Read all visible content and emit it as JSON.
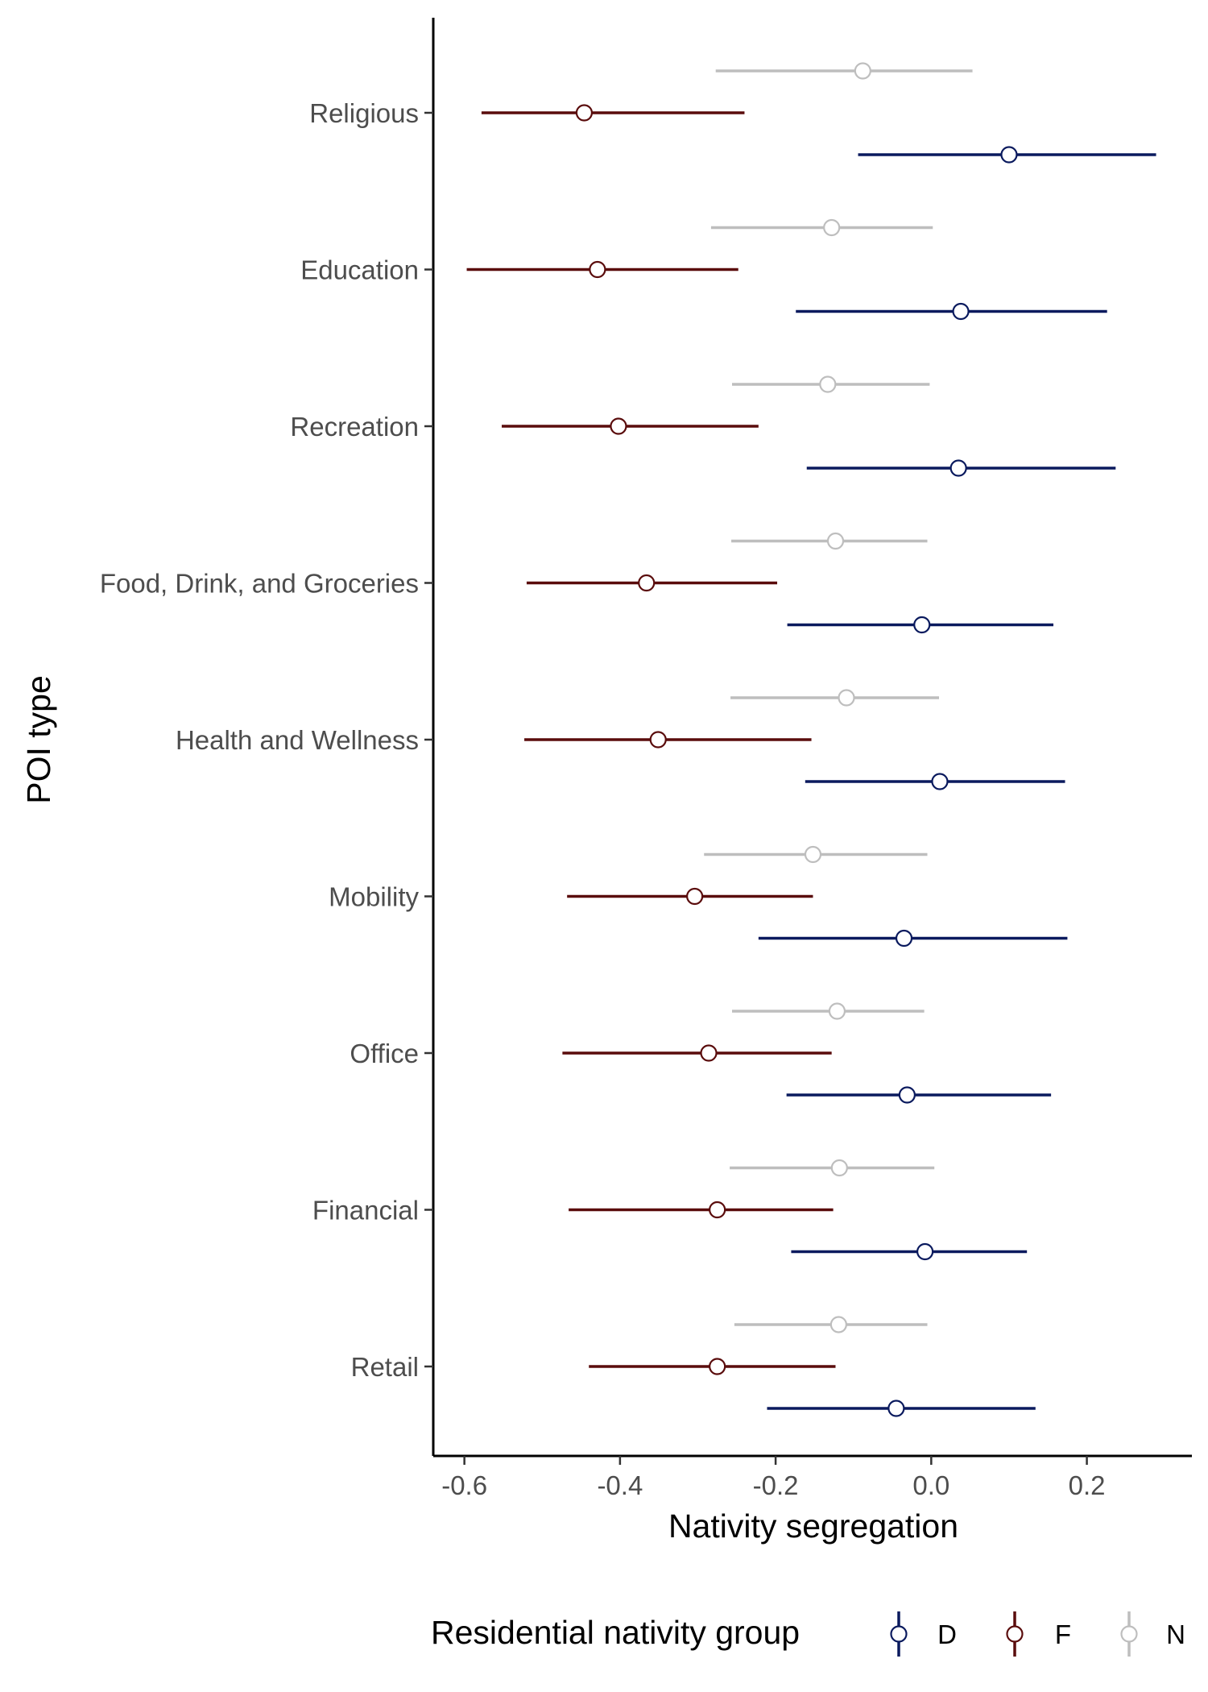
{
  "chart_data": {
    "type": "scatter",
    "subtype": "dot-and-whisker",
    "orientation": "horizontal",
    "xlabel": "Nativity segregation",
    "ylabel": "POI type",
    "xlim": [
      -0.64,
      0.335
    ],
    "x_ticks": [
      {
        "value": -0.6,
        "label": "-0.6"
      },
      {
        "value": -0.4,
        "label": "-0.4"
      },
      {
        "value": -0.2,
        "label": "-0.2"
      },
      {
        "value": 0.0,
        "label": "0.0"
      },
      {
        "value": 0.2,
        "label": "0.2"
      }
    ],
    "categories": [
      "Religious",
      "Education",
      "Recreation",
      "Food, Drink, and Groceries",
      "Health and Wellness",
      "Mobility",
      "Office",
      "Financial",
      "Retail"
    ],
    "legend": {
      "title": "Residential nativity group",
      "position": "bottom",
      "items": [
        {
          "key": "D",
          "label": "D"
        },
        {
          "key": "F",
          "label": "F"
        },
        {
          "key": "N",
          "label": "N"
        }
      ]
    },
    "series": [
      {
        "key": "N",
        "color": "#bebebe",
        "estimates": [
          -0.088,
          -0.128,
          -0.133,
          -0.123,
          -0.109,
          -0.152,
          -0.121,
          -0.118,
          -0.119
        ],
        "lower": [
          -0.277,
          -0.283,
          -0.256,
          -0.257,
          -0.258,
          -0.292,
          -0.256,
          -0.259,
          -0.253
        ],
        "upper": [
          0.053,
          0.002,
          -0.002,
          -0.005,
          0.01,
          -0.005,
          -0.009,
          0.004,
          -0.005
        ]
      },
      {
        "key": "F",
        "color": "#5a0c0c",
        "estimates": [
          -0.446,
          -0.429,
          -0.402,
          -0.366,
          -0.351,
          -0.304,
          -0.286,
          -0.275,
          -0.275
        ],
        "lower": [
          -0.578,
          -0.597,
          -0.552,
          -0.52,
          -0.523,
          -0.468,
          -0.474,
          -0.466,
          -0.44
        ],
        "upper": [
          -0.24,
          -0.248,
          -0.222,
          -0.198,
          -0.154,
          -0.152,
          -0.128,
          -0.126,
          -0.123
        ]
      },
      {
        "key": "D",
        "color": "#0a1a5e",
        "estimates": [
          0.1,
          0.038,
          0.035,
          -0.012,
          0.011,
          -0.035,
          -0.031,
          -0.008,
          -0.045
        ],
        "lower": [
          -0.094,
          -0.174,
          -0.16,
          -0.185,
          -0.162,
          -0.222,
          -0.186,
          -0.18,
          -0.211
        ],
        "upper": [
          0.289,
          0.226,
          0.237,
          0.157,
          0.172,
          0.175,
          0.154,
          0.123,
          0.134
        ]
      }
    ],
    "grid": false
  }
}
